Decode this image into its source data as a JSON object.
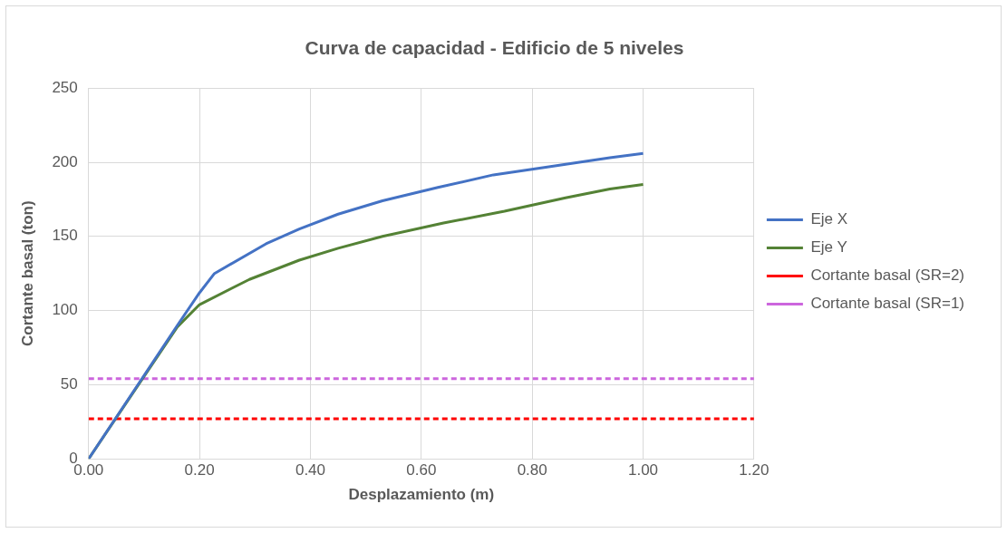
{
  "chart_data": {
    "type": "line",
    "title": "Curva de capacidad - Edificio de 5 niveles",
    "xlabel": "Desplazamiento (m)",
    "ylabel": "Cortante basal (ton)",
    "xlim": [
      0,
      1.2
    ],
    "xticks": [
      {
        "value": 0,
        "label": "0.00"
      },
      {
        "value": 0.2,
        "label": "0.20"
      },
      {
        "value": 0.4,
        "label": "0.40"
      },
      {
        "value": 0.6,
        "label": "0.60"
      },
      {
        "value": 0.8,
        "label": "0.80"
      },
      {
        "value": 1,
        "label": "1.00"
      },
      {
        "value": 1.2,
        "label": "1.20"
      }
    ],
    "ylim": [
      0,
      250
    ],
    "yticks": [
      0,
      50,
      100,
      150,
      200,
      250
    ],
    "grid": true,
    "legend": "right",
    "marker": "none",
    "series": [
      {
        "name": "Eje X",
        "color": "#4472c4",
        "x": [
          0,
          0.16,
          0.2,
          0.227,
          0.32,
          0.38,
          0.45,
          0.53,
          0.63,
          0.73,
          0.83,
          0.94,
          1.0
        ],
        "values": [
          0,
          90,
          112,
          125,
          145,
          155,
          165,
          174,
          183,
          191.5,
          197,
          203,
          206
        ]
      },
      {
        "name": "Eje Y",
        "color": "#548235",
        "x": [
          0,
          0.16,
          0.2,
          0.29,
          0.38,
          0.45,
          0.53,
          0.64,
          0.75,
          0.86,
          0.94,
          1.0
        ],
        "values": [
          0,
          89,
          104,
          121,
          134,
          142,
          150,
          159,
          167,
          176,
          182,
          185
        ]
      },
      {
        "name": "Cortante basal (SR=2)",
        "color": "#ff0000",
        "line_style": "dashed",
        "x": [
          0,
          1.2
        ],
        "values": [
          27,
          27
        ]
      },
      {
        "name": "Cortante basal (SR=1)",
        "color": "#cc66dd",
        "line_style": "dashed",
        "x": [
          0,
          1.2
        ],
        "values": [
          54,
          54
        ]
      }
    ]
  }
}
